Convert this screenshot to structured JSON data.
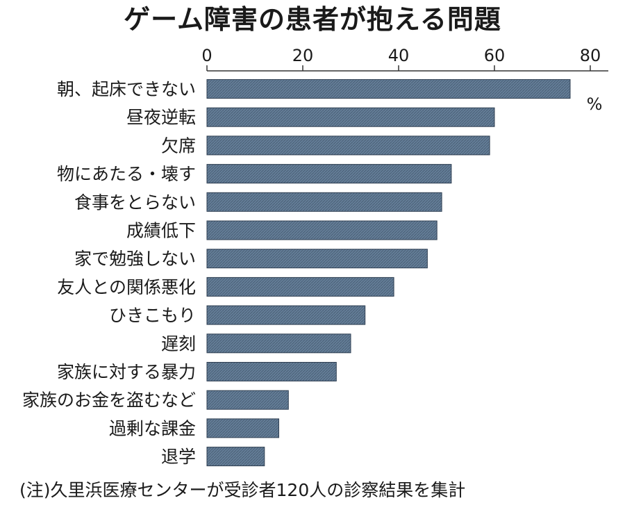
{
  "title": "ゲーム障害の患者が抱える問題",
  "note": "(注)久里浜医療センターが受診者120人の診察結果を集計",
  "colors": {
    "bar_fill": "#647e98",
    "bar_stroke": "#2f3f52",
    "axis": "#333333"
  },
  "chart_data": {
    "type": "bar",
    "orientation": "horizontal",
    "title": "ゲーム障害の患者が抱える問題",
    "unit": "%",
    "xlim": [
      0,
      80
    ],
    "xticks": [
      0,
      20,
      40,
      60,
      80
    ],
    "grid": false,
    "categories": [
      "朝、起床できない",
      "昼夜逆転",
      "欠席",
      "物にあたる・壊す",
      "食事をとらない",
      "成績低下",
      "家で勉強しない",
      "友人との関係悪化",
      "ひきこもり",
      "遅刻",
      "家族に対する暴力",
      "家族のお金を盗むなど",
      "過剰な課金",
      "退学"
    ],
    "values": [
      75.8,
      60,
      59,
      51,
      49,
      48,
      46,
      39,
      33,
      30,
      27,
      17,
      15,
      12
    ]
  }
}
